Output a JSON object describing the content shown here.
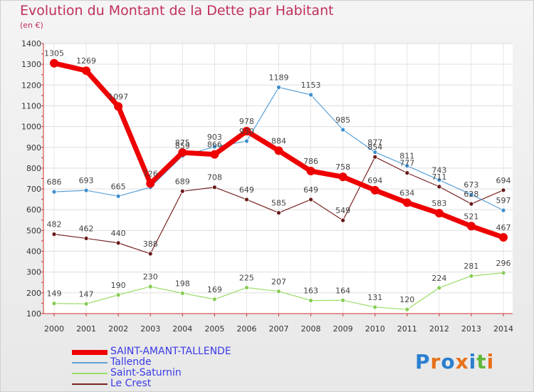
{
  "chart_data": {
    "type": "line",
    "title": "Evolution du Montant de la Dette par Habitant",
    "unit_label": "(en €)",
    "categories": [
      "2000",
      "2001",
      "2002",
      "2003",
      "2004",
      "2005",
      "2006",
      "2007",
      "2008",
      "2009",
      "2010",
      "2011",
      "2012",
      "2013",
      "2014"
    ],
    "ylim": [
      100,
      1400
    ],
    "yticks": [
      100,
      200,
      300,
      400,
      500,
      600,
      700,
      800,
      900,
      1000,
      1100,
      1200,
      1300,
      1400
    ],
    "grid": true,
    "legend_position": "bottom-left",
    "series": [
      {
        "name": "SAINT-AMANT-TALLENDE",
        "color": "#ee0000",
        "values": [
          1305,
          1269,
          1097,
          726,
          875,
          866,
          978,
          884,
          786,
          758,
          694,
          634,
          583,
          521,
          467
        ]
      },
      {
        "name": "Tallende",
        "color": "#5aa0d8",
        "values": [
          686,
          693,
          665,
          708,
          859,
          903,
          930,
          1189,
          1153,
          985,
          877,
          811,
          743,
          673,
          597
        ]
      },
      {
        "name": "Saint-Saturnin",
        "color": "#99dd66",
        "values": [
          149,
          147,
          190,
          230,
          198,
          169,
          225,
          207,
          163,
          164,
          131,
          120,
          224,
          281,
          296
        ]
      },
      {
        "name": "Le Crest",
        "color": "#7a2424",
        "values": [
          482,
          462,
          440,
          388,
          689,
          708,
          649,
          585,
          649,
          549,
          854,
          777,
          711,
          628,
          694
        ]
      }
    ],
    "data_labels": [
      {
        "series": 0,
        "labels": [
          "1305",
          "1269",
          "1097",
          "726",
          "875",
          "866",
          "978",
          "884",
          "786",
          "758",
          "694",
          "634",
          "583",
          "521",
          "467"
        ]
      },
      {
        "series": 1,
        "labels": [
          "686",
          "693",
          "665",
          "",
          "859",
          "903",
          "930",
          "1189",
          "1153",
          "985",
          "877",
          "811",
          "743",
          "673",
          "597"
        ]
      },
      {
        "series": 2,
        "labels": [
          "149",
          "147",
          "190",
          "230",
          "198",
          "169",
          "225",
          "207",
          "163",
          "164",
          "131",
          "120",
          "224",
          "281",
          "296"
        ]
      },
      {
        "series": 3,
        "labels": [
          "482",
          "462",
          "440",
          "388",
          "689",
          "708",
          "649",
          "585",
          "649",
          "549",
          "854",
          "777",
          "711",
          "628",
          "694"
        ]
      }
    ]
  },
  "logo": {
    "text": "Proxiti",
    "letters": [
      "P",
      "r",
      "o",
      "x",
      "i",
      "t",
      "i"
    ],
    "colors": [
      "#2a7fd0",
      "#e8701a",
      "#2a7fd0",
      "#e8701a",
      "#2a7fd0",
      "#5fb83a",
      "#e8701a"
    ]
  }
}
